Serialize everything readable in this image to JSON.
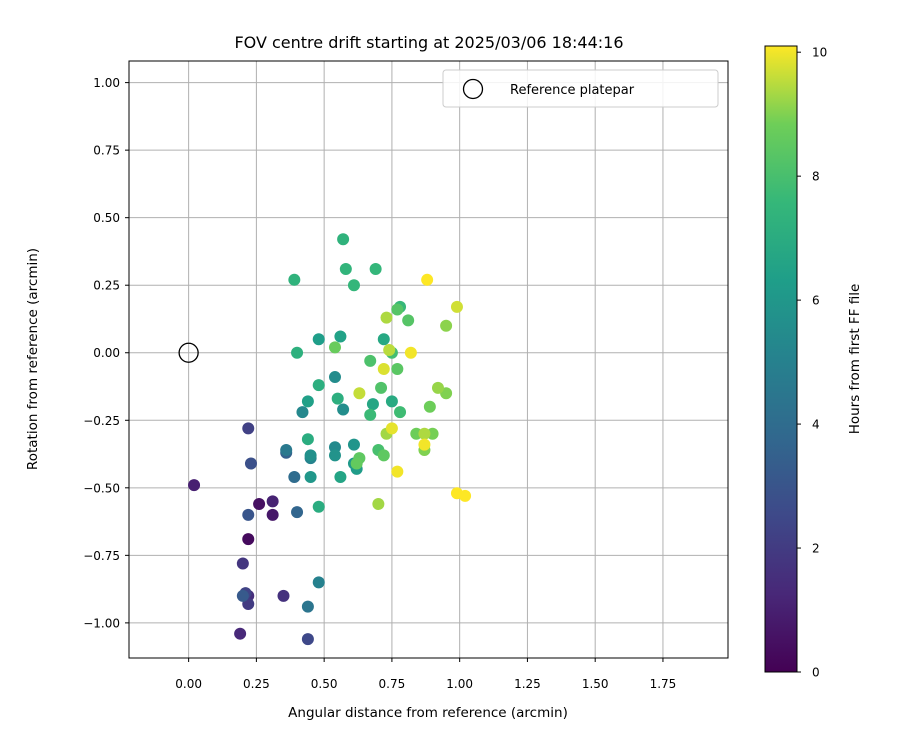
{
  "chart_data": {
    "type": "scatter",
    "title": "FOV centre drift starting at 2025/03/06 18:44:16",
    "xlabel": "Angular distance from reference (arcmin)",
    "ylabel": "Rotation from reference (arcmin)",
    "xlim": [
      -0.22,
      1.99
    ],
    "ylim": [
      -1.13,
      1.08
    ],
    "xticks": [
      "0.00",
      "0.25",
      "0.50",
      "0.75",
      "1.00",
      "1.25",
      "1.50",
      "1.75"
    ],
    "yticks": [
      "1.00",
      "0.75",
      "0.50",
      "0.25",
      "0.00",
      "−0.25",
      "−0.50",
      "−0.75",
      "−1.00"
    ],
    "grid": true,
    "legend": {
      "placement": "top-right",
      "entries": [
        "Reference platepar"
      ]
    },
    "reference_point": {
      "name": "Reference platepar",
      "x": 0.0,
      "y": 0.0
    },
    "colorbar": {
      "label": "Hours from first FF file",
      "min": 0,
      "max": 10.1,
      "ticks": [
        "0",
        "2",
        "4",
        "6",
        "8",
        "10"
      ],
      "colormap": "viridis"
    },
    "points": [
      {
        "x": 0.22,
        "y": -0.69,
        "c": 0.3
      },
      {
        "x": 0.26,
        "y": -0.56,
        "c": 0.5
      },
      {
        "x": 0.31,
        "y": -0.6,
        "c": 0.7
      },
      {
        "x": 0.02,
        "y": -0.49,
        "c": 1.0
      },
      {
        "x": 0.31,
        "y": -0.55,
        "c": 1.1
      },
      {
        "x": 0.19,
        "y": -1.04,
        "c": 1.3
      },
      {
        "x": 0.22,
        "y": -0.9,
        "c": 1.5
      },
      {
        "x": 0.35,
        "y": -0.9,
        "c": 1.6
      },
      {
        "x": 0.2,
        "y": -0.78,
        "c": 1.8
      },
      {
        "x": 0.22,
        "y": -0.93,
        "c": 2.0
      },
      {
        "x": 0.22,
        "y": -0.28,
        "c": 2.2
      },
      {
        "x": 0.21,
        "y": -0.89,
        "c": 2.3
      },
      {
        "x": 0.44,
        "y": -1.06,
        "c": 2.5
      },
      {
        "x": 0.23,
        "y": -0.41,
        "c": 2.8
      },
      {
        "x": 0.22,
        "y": -0.6,
        "c": 3.0
      },
      {
        "x": 0.2,
        "y": -0.9,
        "c": 3.2
      },
      {
        "x": 0.36,
        "y": -0.37,
        "c": 3.5
      },
      {
        "x": 0.4,
        "y": -0.59,
        "c": 3.7
      },
      {
        "x": 0.39,
        "y": -0.46,
        "c": 4.0
      },
      {
        "x": 0.44,
        "y": -0.94,
        "c": 4.4
      },
      {
        "x": 0.36,
        "y": -0.36,
        "c": 4.6
      },
      {
        "x": 0.48,
        "y": -0.85,
        "c": 5.0
      },
      {
        "x": 0.45,
        "y": -0.39,
        "c": 5.1
      },
      {
        "x": 0.42,
        "y": -0.22,
        "c": 5.3
      },
      {
        "x": 0.54,
        "y": -0.35,
        "c": 5.4
      },
      {
        "x": 0.54,
        "y": -0.09,
        "c": 5.5
      },
      {
        "x": 0.57,
        "y": -0.21,
        "c": 5.6
      },
      {
        "x": 0.45,
        "y": -0.38,
        "c": 5.7
      },
      {
        "x": 0.54,
        "y": -0.38,
        "c": 5.8
      },
      {
        "x": 0.61,
        "y": -0.34,
        "c": 5.9
      },
      {
        "x": 0.45,
        "y": -0.46,
        "c": 6.0
      },
      {
        "x": 0.61,
        "y": -0.41,
        "c": 6.1
      },
      {
        "x": 0.62,
        "y": -0.43,
        "c": 6.2
      },
      {
        "x": 0.48,
        "y": 0.05,
        "c": 6.3
      },
      {
        "x": 0.44,
        "y": -0.18,
        "c": 6.4
      },
      {
        "x": 0.56,
        "y": 0.06,
        "c": 6.5
      },
      {
        "x": 0.56,
        "y": -0.46,
        "c": 6.6
      },
      {
        "x": 0.68,
        "y": -0.19,
        "c": 6.7
      },
      {
        "x": 0.72,
        "y": 0.05,
        "c": 6.8
      },
      {
        "x": 0.75,
        "y": -0.18,
        "c": 6.9
      },
      {
        "x": 0.48,
        "y": -0.57,
        "c": 7.0
      },
      {
        "x": 0.44,
        "y": -0.32,
        "c": 7.0
      },
      {
        "x": 0.48,
        "y": -0.12,
        "c": 7.1
      },
      {
        "x": 0.55,
        "y": -0.17,
        "c": 7.1
      },
      {
        "x": 0.4,
        "y": 0.0,
        "c": 7.2
      },
      {
        "x": 0.57,
        "y": 0.42,
        "c": 7.3
      },
      {
        "x": 0.39,
        "y": 0.27,
        "c": 7.3
      },
      {
        "x": 0.58,
        "y": 0.31,
        "c": 7.4
      },
      {
        "x": 0.61,
        "y": 0.25,
        "c": 7.5
      },
      {
        "x": 0.69,
        "y": 0.31,
        "c": 7.5
      },
      {
        "x": 0.78,
        "y": 0.17,
        "c": 7.6
      },
      {
        "x": 0.67,
        "y": -0.23,
        "c": 7.7
      },
      {
        "x": 0.78,
        "y": -0.22,
        "c": 7.8
      },
      {
        "x": 0.75,
        "y": 0.0,
        "c": 7.9
      },
      {
        "x": 0.7,
        "y": -0.36,
        "c": 8.0
      },
      {
        "x": 0.67,
        "y": -0.03,
        "c": 8.1
      },
      {
        "x": 0.71,
        "y": -0.13,
        "c": 8.2
      },
      {
        "x": 0.77,
        "y": 0.16,
        "c": 8.3
      },
      {
        "x": 0.81,
        "y": 0.12,
        "c": 8.3
      },
      {
        "x": 0.77,
        "y": -0.06,
        "c": 8.4
      },
      {
        "x": 0.72,
        "y": -0.38,
        "c": 8.5
      },
      {
        "x": 0.63,
        "y": -0.39,
        "c": 8.5
      },
      {
        "x": 0.62,
        "y": -0.41,
        "c": 8.6
      },
      {
        "x": 0.54,
        "y": 0.02,
        "c": 8.7
      },
      {
        "x": 0.84,
        "y": -0.3,
        "c": 8.8
      },
      {
        "x": 0.89,
        "y": -0.2,
        "c": 8.8
      },
      {
        "x": 0.9,
        "y": -0.3,
        "c": 8.9
      },
      {
        "x": 0.87,
        "y": -0.36,
        "c": 9.0
      },
      {
        "x": 0.95,
        "y": -0.15,
        "c": 9.0
      },
      {
        "x": 0.95,
        "y": 0.1,
        "c": 9.1
      },
      {
        "x": 0.92,
        "y": -0.13,
        "c": 9.2
      },
      {
        "x": 0.73,
        "y": -0.3,
        "c": 9.3
      },
      {
        "x": 0.7,
        "y": -0.56,
        "c": 9.3
      },
      {
        "x": 0.87,
        "y": -0.3,
        "c": 9.4
      },
      {
        "x": 0.73,
        "y": 0.13,
        "c": 9.4
      },
      {
        "x": 0.74,
        "y": 0.01,
        "c": 9.5
      },
      {
        "x": 0.63,
        "y": -0.15,
        "c": 9.6
      },
      {
        "x": 0.99,
        "y": 0.17,
        "c": 9.7
      },
      {
        "x": 0.72,
        "y": -0.06,
        "c": 9.8
      },
      {
        "x": 0.75,
        "y": -0.28,
        "c": 9.9
      },
      {
        "x": 0.77,
        "y": -0.44,
        "c": 10.0
      },
      {
        "x": 0.87,
        "y": -0.34,
        "c": 10.0
      },
      {
        "x": 0.82,
        "y": 0.0,
        "c": 10.0
      },
      {
        "x": 0.88,
        "y": 0.27,
        "c": 10.1
      },
      {
        "x": 0.99,
        "y": -0.52,
        "c": 10.1
      },
      {
        "x": 1.02,
        "y": -0.53,
        "c": 10.1
      }
    ]
  }
}
